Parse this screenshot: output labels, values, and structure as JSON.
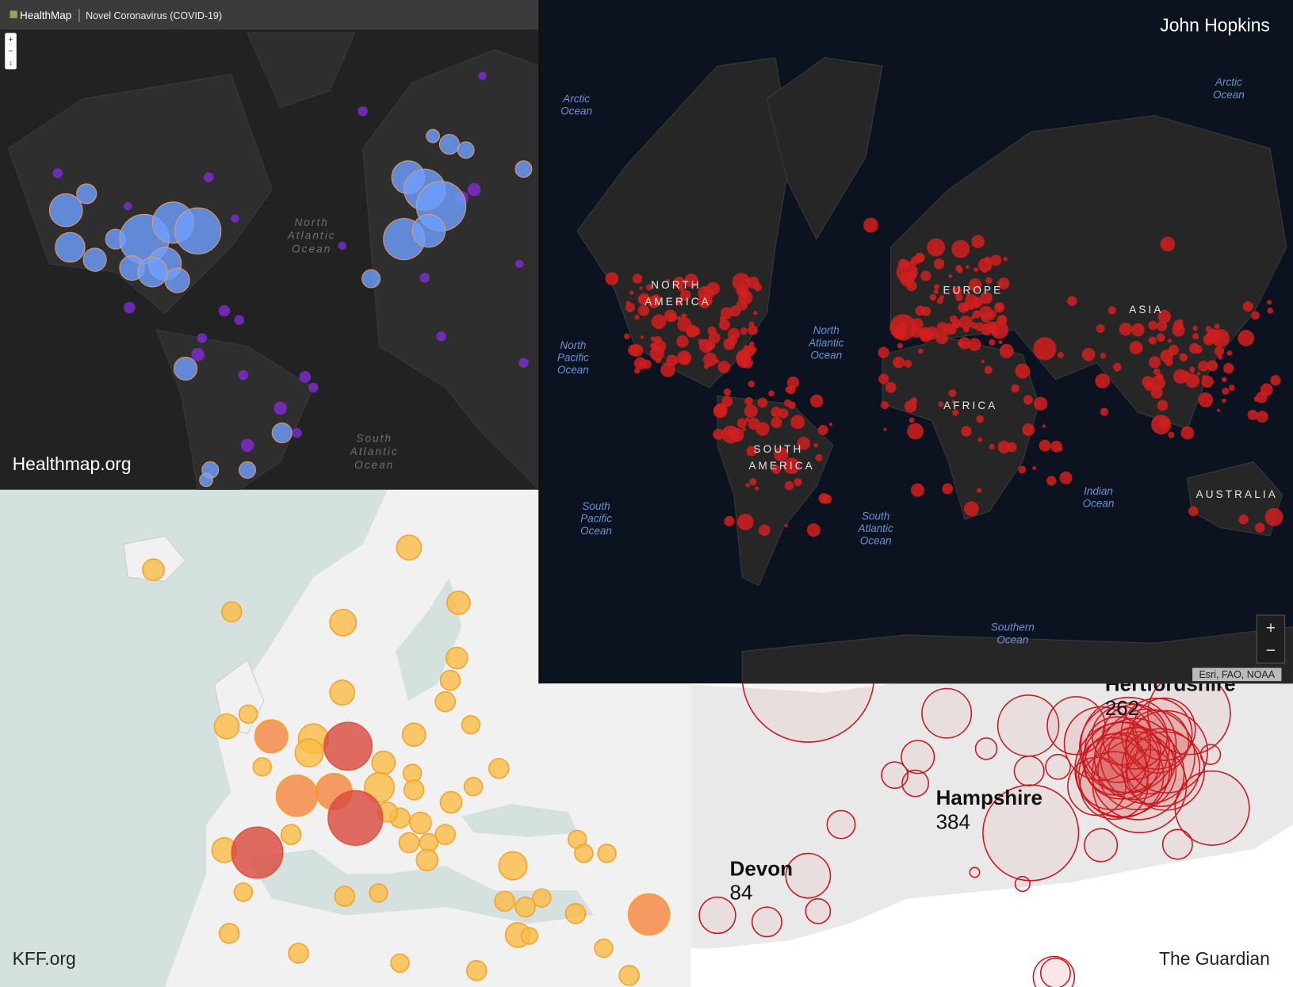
{
  "healthmap": {
    "brand": "HealthMap",
    "title": "Novel Coronavirus (COVID-19)",
    "zoom": [
      "+",
      "−",
      "↕"
    ],
    "oceans": [
      [
        "North",
        "Atlantic",
        "Ocean"
      ],
      [
        "South",
        "Atlantic",
        "Ocean"
      ]
    ],
    "credit": "Healthmap.org"
  },
  "johns_hopkins": {
    "credit": "John Hopkins",
    "oceans": [
      [
        "Arctic",
        "Ocean"
      ],
      [
        "Arctic",
        "Ocean"
      ],
      [
        "North",
        "Pacific",
        "Ocean"
      ],
      [
        "North",
        "Atlantic",
        "Ocean"
      ],
      [
        "South",
        "Pacific",
        "Ocean"
      ],
      [
        "South",
        "Atlantic",
        "Ocean"
      ],
      [
        "Indian",
        "Ocean"
      ],
      [
        "Southern",
        "Ocean"
      ]
    ],
    "continents": [
      [
        "NORTH",
        "AMERICA"
      ],
      [
        "EUROPE"
      ],
      [
        "ASIA"
      ],
      [
        "AFRICA"
      ],
      [
        "SOUTH",
        "AMERICA"
      ],
      [
        "AUSTRALIA"
      ]
    ],
    "zoom": [
      "+",
      "−"
    ],
    "attribution": "Esri, FAO, NOAA"
  },
  "kff": {
    "credit": "KFF.org"
  },
  "guardian": {
    "regions": [
      {
        "name": "Hertfordshire",
        "count": 262
      },
      {
        "name": "Hampshire",
        "count": 384
      },
      {
        "name": "Devon",
        "count": 84
      }
    ],
    "credit": "The Guardian"
  }
}
